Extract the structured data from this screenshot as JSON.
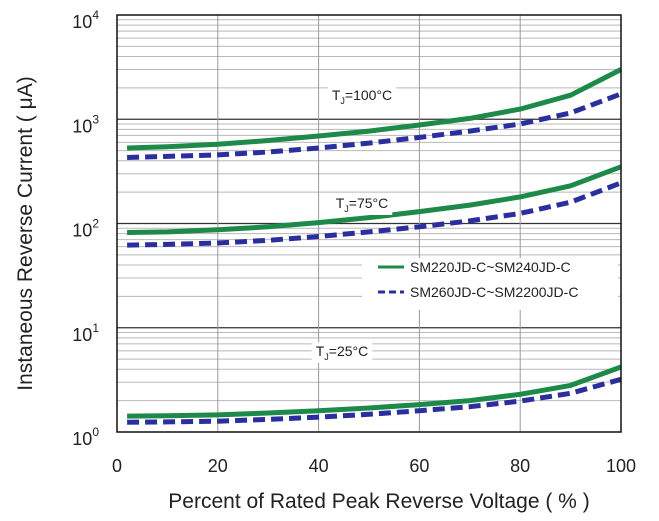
{
  "chart_data": {
    "type": "line",
    "xlabel": "Percent of Rated Peak Reverse Voltage ( % )",
    "ylabel": "Instaneous Reverse Current ( μA)",
    "xlim": [
      0,
      100
    ],
    "ylim": [
      1,
      10000
    ],
    "yscale": "log",
    "x_ticks": [
      "0",
      "20",
      "40",
      "60",
      "80",
      "100"
    ],
    "y_ticks": [
      {
        "base": "10",
        "exp": "0"
      },
      {
        "base": "10",
        "exp": "1"
      },
      {
        "base": "10",
        "exp": "2"
      },
      {
        "base": "10",
        "exp": "3"
      },
      {
        "base": "10",
        "exp": "4"
      }
    ],
    "grid": true,
    "legend": [
      {
        "name": "SM220JD-C~SM240JD-C",
        "color": "#1e8a4a",
        "style": "solid"
      },
      {
        "name": "SM260JD-C~SM2200JD-C",
        "color": "#2b2f9e",
        "style": "dashed"
      }
    ],
    "annotations": [
      {
        "pre": "T",
        "sub": "J",
        "post": "=100°C"
      },
      {
        "pre": "T",
        "sub": "J",
        "post": "=75°C"
      },
      {
        "pre": "T",
        "sub": "J",
        "post": "=25°C"
      }
    ],
    "x": [
      2,
      10,
      20,
      30,
      40,
      50,
      60,
      70,
      80,
      90,
      100
    ],
    "series": [
      {
        "name": "SM220JD-C~SM240JD-C",
        "temp": "100°C",
        "values": [
          530,
          545,
          575,
          625,
          690,
          770,
          880,
          1020,
          1250,
          1700,
          3000
        ]
      },
      {
        "name": "SM260JD-C~SM2200JD-C",
        "temp": "100°C",
        "values": [
          430,
          440,
          455,
          485,
          530,
          590,
          670,
          770,
          900,
          1150,
          1750
        ]
      },
      {
        "name": "SM220JD-C~SM240JD-C",
        "temp": "75°C",
        "values": [
          82,
          83,
          87,
          93,
          102,
          114,
          130,
          150,
          180,
          230,
          350
        ]
      },
      {
        "name": "SM260JD-C~SM2200JD-C",
        "temp": "75°C",
        "values": [
          62,
          63,
          65,
          69,
          75,
          83,
          93,
          106,
          125,
          160,
          245
        ]
      },
      {
        "name": "SM220JD-C~SM240JD-C",
        "temp": "25°C",
        "values": [
          1.42,
          1.43,
          1.46,
          1.52,
          1.6,
          1.7,
          1.83,
          2.0,
          2.3,
          2.8,
          4.2
        ]
      },
      {
        "name": "SM260JD-C~SM2200JD-C",
        "temp": "25°C",
        "values": [
          1.24,
          1.25,
          1.27,
          1.32,
          1.39,
          1.48,
          1.6,
          1.75,
          1.98,
          2.35,
          3.2
        ]
      }
    ]
  }
}
